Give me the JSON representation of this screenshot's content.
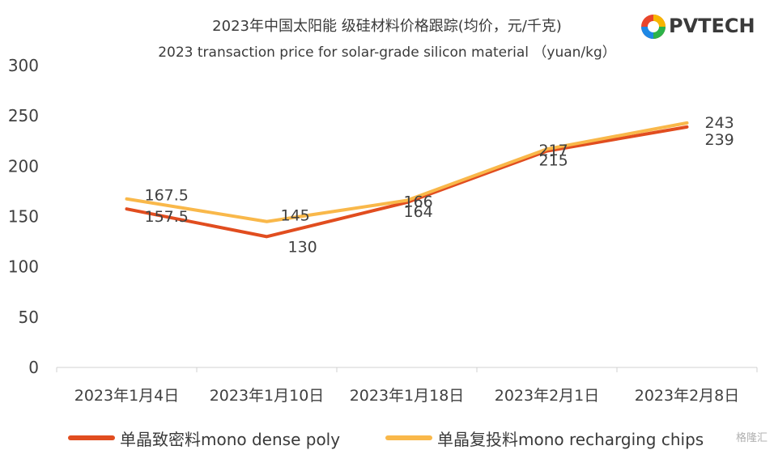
{
  "chart_data": {
    "type": "line",
    "title": "2023年中国太阳能 级硅材料价格跟踪(均价，元/千克)",
    "subtitle": "2023 transaction price for solar-grade silicon material （yuan/kg）",
    "categories": [
      "2023年1月4日",
      "2023年1月10日",
      "2023年1月18日",
      "2023年2月1日",
      "2023年2月8日"
    ],
    "series": [
      {
        "name": "单晶致密料mono dense poly",
        "values": [
          157.5,
          130,
          164,
          215,
          239
        ],
        "labels": [
          "157.5",
          "130",
          "164",
          "215",
          "239"
        ],
        "color": "#e14d1f"
      },
      {
        "name": "单晶复投料mono recharging chips",
        "values": [
          167.5,
          145,
          166,
          217,
          243
        ],
        "labels": [
          "167.5",
          "145",
          "166",
          "217",
          "243"
        ],
        "color": "#f9b84a"
      }
    ],
    "ylim": [
      0,
      300
    ],
    "yticks": [
      "0",
      "50",
      "100",
      "150",
      "200",
      "250",
      "300"
    ],
    "grid": false,
    "legend": "bottom"
  },
  "logo": {
    "text": "PVTECH"
  },
  "watermark": "格隆汇"
}
